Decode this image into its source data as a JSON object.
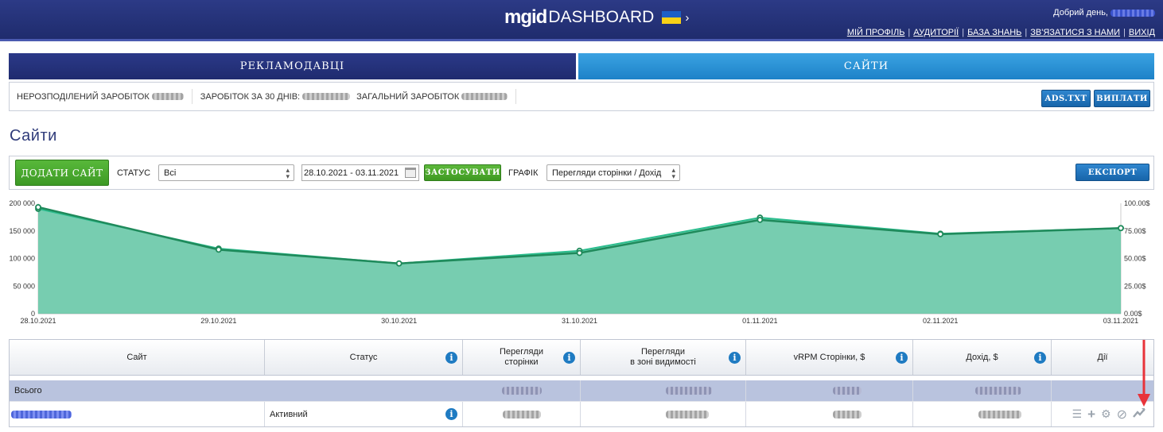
{
  "header": {
    "logo_mgid": "mgid",
    "logo_dashboard": "DASHBOARD",
    "chevron": "›",
    "greeting": "Добрий день,",
    "links": [
      "МІЙ ПРОФІЛЬ",
      "АУДИТОРІЇ",
      "БАЗА ЗНАНЬ",
      "ЗВ'ЯЗАТИСЯ З НАМИ",
      "ВИХІД"
    ],
    "link_separator": "|"
  },
  "tabs": {
    "advertisers": "РЕКЛАМОДАВЦІ",
    "sites": "САЙТИ"
  },
  "earnings": {
    "unallocated_label": "НЕРОЗПОДІЛЕНИЙ ЗАРОБІТОК",
    "last30_label": "ЗАРОБІТОК ЗА 30 ДНІВ:",
    "total_label": "ЗАГАЛЬНИЙ ЗАРОБІТОК",
    "ads_txt_button": "ADS.TXT",
    "payouts_button": "ВИПЛАТИ"
  },
  "page": {
    "title": "Сайти"
  },
  "filters": {
    "add_site_button": "ДОДАТИ САЙТ",
    "status_label": "СТАТУС",
    "status_value": "Всі",
    "date_range": "28.10.2021 - 03.11.2021",
    "apply_button": "ЗАСТОСУВАТИ",
    "chart_label": "ГРАФІК",
    "chart_value": "Перегляди сторінки / Дохід",
    "export_button": "ЕКСПОРТ"
  },
  "chart_data": {
    "type": "area",
    "x": [
      "28.10.2021",
      "29.10.2021",
      "30.10.2021",
      "31.10.2021",
      "01.11.2021",
      "02.11.2021",
      "03.11.2021"
    ],
    "series": [
      {
        "values": [
          190000,
          118000,
          91000,
          114000,
          174000,
          145000,
          155000
        ],
        "axis": "left",
        "color": "#5fc4a2"
      },
      {
        "values": [
          96.5,
          58.0,
          45.5,
          55.0,
          85.0,
          72.0,
          77.5
        ],
        "axis": "right",
        "color": "#1f8a5b"
      }
    ],
    "yleft_ticks": [
      "200 000",
      "150 000",
      "100 000",
      "50 000",
      "0"
    ],
    "yright_ticks": [
      "100.00$",
      "75.00$",
      "50.00$",
      "25.00$",
      "0.00$"
    ],
    "ylim_left": [
      0,
      200000
    ],
    "ylim_right": [
      0,
      100
    ],
    "grid": false
  },
  "table": {
    "headers": {
      "site": "Сайт",
      "status": "Статус",
      "pageviews": "Перегляди\nсторінки",
      "viewable": "Перегляди\nв зоні видимості",
      "vrpm": "vRPM Сторінки, $",
      "revenue": "Дохід, $",
      "actions": "Дії"
    },
    "info_icon": "i",
    "total_label": "Всього",
    "site_status": "Активний"
  },
  "colors": {
    "header_bg": "#233077",
    "tab_active": "#2a91d6",
    "area_fill": "#5fc4a2",
    "area_line": "#1f8a5b",
    "annotation_arrow": "#e8333a"
  }
}
